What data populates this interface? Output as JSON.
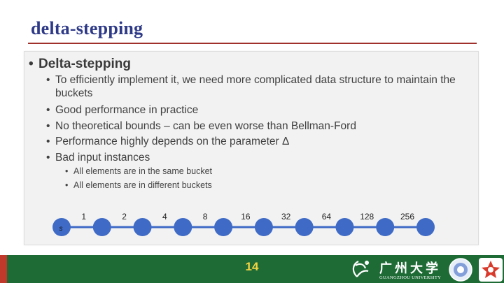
{
  "slide": {
    "title": "delta-stepping",
    "page_number": "14"
  },
  "content": {
    "heading": "Delta-stepping",
    "bullets": [
      "To efficiently implement it, we need more complicated data structure to maintain the",
      "buckets",
      "Good performance in practice",
      "No theoretical bounds – can be even worse than Bellman-Ford",
      "Performance highly depends on the parameter Δ",
      "Bad input instances"
    ],
    "sub_bullets": [
      "All elements are in the same bucket",
      "All elements are in different buckets"
    ]
  },
  "graph": {
    "start_label": "s",
    "edge_weights": [
      "1",
      "2",
      "4",
      "8",
      "16",
      "32",
      "64",
      "128",
      "256"
    ],
    "node_color": "#3f6bc6",
    "edge_color": "#3f6bc6"
  },
  "logo": {
    "name_cn": "广州大学",
    "name_en": "GUANGZHOU UNIVERSITY"
  },
  "colors": {
    "title": "#2e3a87",
    "rule": "#a0302c",
    "footer": "#1e6b36",
    "page_number": "#f5d442"
  }
}
